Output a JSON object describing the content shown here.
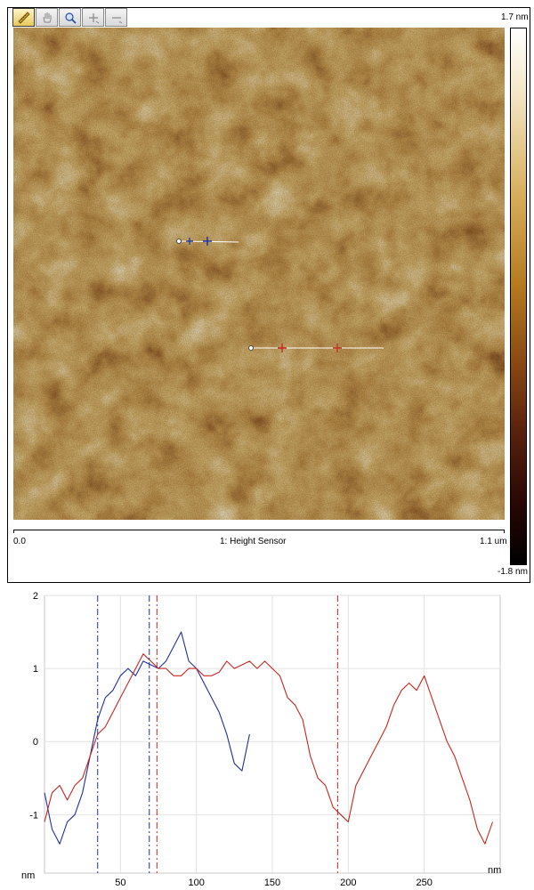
{
  "toolbar": {
    "icons": [
      "ruler-icon",
      "pan-hand-icon",
      "zoom-icon",
      "zoom-in-icon",
      "zoom-out-icon"
    ]
  },
  "afm": {
    "channel_label": "1: Height Sensor",
    "x_start": "0.0",
    "x_end": "1.1 um",
    "colorbar_max": "1.7 nm",
    "colorbar_min": "-1.8 nm",
    "colormap": [
      "#ffffff",
      "#f3e7c6",
      "#d6ab57",
      "#b47a1f",
      "#8a4a14",
      "#5a220c",
      "#000000"
    ]
  },
  "chart_data": {
    "type": "line",
    "title": "",
    "xlabel": "nm",
    "ylabel": "nm",
    "xlim": [
      0,
      300
    ],
    "ylim": [
      -1.8,
      2
    ],
    "xticks": [
      "50",
      "100",
      "150",
      "200",
      "250"
    ],
    "yticks": [
      "2",
      "1",
      "0",
      "-1"
    ],
    "grid": true,
    "series": [
      {
        "color": "#1f2f9c",
        "x": [
          0,
          5,
          10,
          15,
          20,
          25,
          30,
          35,
          40,
          45,
          50,
          55,
          60,
          65,
          70,
          75,
          80,
          85,
          90,
          95,
          100,
          105,
          110,
          115,
          120,
          125,
          130,
          135
        ],
        "y": [
          -0.7,
          -1.2,
          -1.4,
          -1.1,
          -1.0,
          -0.7,
          -0.2,
          0.3,
          0.6,
          0.7,
          0.9,
          1.0,
          0.9,
          1.1,
          1.05,
          1.0,
          1.1,
          1.3,
          1.5,
          1.1,
          1.0,
          0.8,
          0.6,
          0.4,
          0.1,
          -0.3,
          -0.4,
          0.1
        ]
      },
      {
        "color": "#c8261f",
        "x": [
          0,
          5,
          10,
          15,
          20,
          25,
          30,
          35,
          40,
          45,
          50,
          55,
          60,
          65,
          70,
          75,
          80,
          85,
          90,
          95,
          100,
          105,
          110,
          115,
          120,
          125,
          130,
          135,
          140,
          145,
          150,
          155,
          160,
          165,
          170,
          175,
          180,
          185,
          190,
          195,
          200,
          205,
          210,
          215,
          220,
          225,
          230,
          235,
          240,
          245,
          250,
          255,
          260,
          265,
          270,
          275,
          280,
          285,
          290,
          295
        ],
        "y": [
          -1.1,
          -0.7,
          -0.6,
          -0.8,
          -0.6,
          -0.5,
          -0.2,
          0.1,
          0.2,
          0.4,
          0.6,
          0.8,
          1.0,
          1.2,
          1.1,
          1.0,
          1.0,
          0.9,
          0.9,
          1.0,
          1.0,
          0.9,
          0.9,
          0.95,
          1.1,
          1.0,
          1.05,
          1.1,
          1.0,
          1.1,
          1.0,
          0.9,
          0.6,
          0.5,
          0.3,
          -0.2,
          -0.5,
          -0.6,
          -0.9,
          -1.0,
          -1.1,
          -0.6,
          -0.4,
          -0.2,
          0.0,
          0.2,
          0.5,
          0.7,
          0.8,
          0.7,
          0.9,
          0.6,
          0.3,
          0.0,
          -0.2,
          -0.5,
          -0.8,
          -1.2,
          -1.4,
          -1.1
        ]
      }
    ],
    "cursors": [
      {
        "x": 35,
        "color": "#1f2f9c"
      },
      {
        "x": 69,
        "color": "#1f2f9c"
      },
      {
        "x": 74,
        "color": "#c8261f"
      },
      {
        "x": 193,
        "color": "#c8261f"
      }
    ]
  }
}
